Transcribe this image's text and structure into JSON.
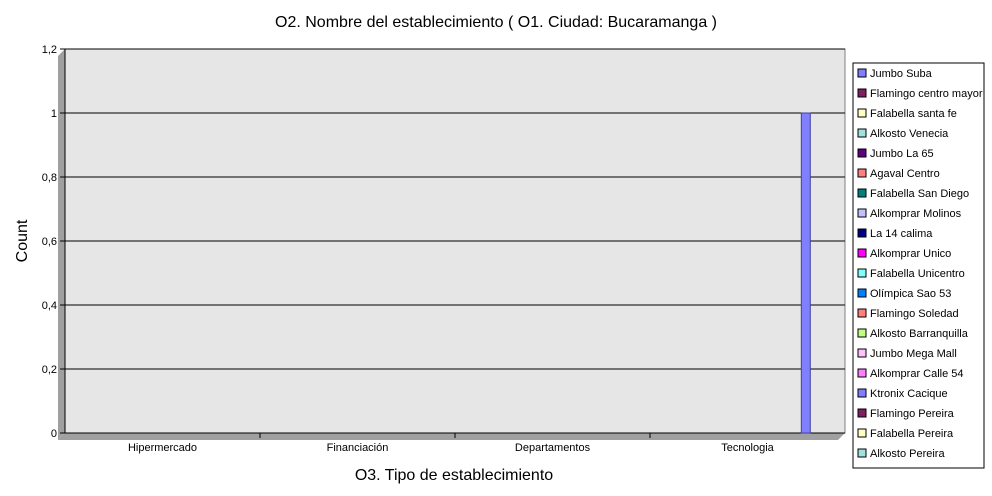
{
  "chart_data": {
    "type": "bar",
    "title": "O2. Nombre del establecimiento ( O1. Ciudad: Bucaramanga )",
    "xlabel": "O3. Tipo de establecimiento",
    "ylabel": "Count",
    "ylim": [
      0,
      1.2
    ],
    "yticks": [
      "0",
      "0,2",
      "0,4",
      "0,6",
      "0,8",
      "1",
      "1,2"
    ],
    "ytick_values": [
      0,
      0.2,
      0.4,
      0.6,
      0.8,
      1.0,
      1.2
    ],
    "grid": true,
    "legend_position": "right",
    "plot_background": "#e6e6e6",
    "categories": [
      "Hipermercado",
      "Financiación",
      "Departamentos",
      "Tecnologia"
    ],
    "series": [
      {
        "name": "Jumbo Suba",
        "color": "#8080ff",
        "values": [
          0,
          0,
          0,
          0
        ]
      },
      {
        "name": "Flamingo centro mayor",
        "color": "#802060",
        "values": [
          0,
          0,
          0,
          0
        ]
      },
      {
        "name": "Falabella santa fe",
        "color": "#ffffc0",
        "values": [
          0,
          0,
          0,
          0
        ]
      },
      {
        "name": "Alkosto Venecia",
        "color": "#a0e0e0",
        "values": [
          0,
          0,
          0,
          0
        ]
      },
      {
        "name": "Jumbo La 65",
        "color": "#600080",
        "values": [
          0,
          0,
          0,
          0
        ]
      },
      {
        "name": "Agaval Centro",
        "color": "#ff8080",
        "values": [
          0,
          0,
          0,
          0
        ]
      },
      {
        "name": "Falabella San Diego",
        "color": "#008080",
        "values": [
          0,
          0,
          0,
          0
        ]
      },
      {
        "name": "Alkomprar Molinos",
        "color": "#c0c0ff",
        "values": [
          0,
          0,
          0,
          0
        ]
      },
      {
        "name": "La 14 calima",
        "color": "#000080",
        "values": [
          0,
          0,
          0,
          0
        ]
      },
      {
        "name": "Alkomprar Unico",
        "color": "#ff00ff",
        "values": [
          0,
          0,
          0,
          0
        ]
      },
      {
        "name": "Falabella Unicentro",
        "color": "#80ffff",
        "values": [
          0,
          0,
          0,
          0
        ]
      },
      {
        "name": "Olímpica Sao 53",
        "color": "#0080ff",
        "values": [
          0,
          0,
          0,
          0
        ]
      },
      {
        "name": "Flamingo Soledad",
        "color": "#ff8080",
        "values": [
          0,
          0,
          0,
          0
        ]
      },
      {
        "name": "Alkosto Barranquilla",
        "color": "#c0ff80",
        "values": [
          0,
          0,
          0,
          0
        ]
      },
      {
        "name": "Jumbo Mega Mall",
        "color": "#ffc0ff",
        "values": [
          0,
          0,
          0,
          0
        ]
      },
      {
        "name": "Alkomprar Calle 54",
        "color": "#ff80ff",
        "values": [
          0,
          0,
          0,
          0
        ]
      },
      {
        "name": "Ktronix Cacique",
        "color": "#8080ff",
        "values": [
          0,
          0,
          0,
          1
        ]
      },
      {
        "name": "Flamingo Pereira",
        "color": "#802060",
        "values": [
          0,
          0,
          0,
          0
        ]
      },
      {
        "name": "Falabella Pereira",
        "color": "#ffffc0",
        "values": [
          0,
          0,
          0,
          0
        ]
      },
      {
        "name": "Alkosto Pereira",
        "color": "#a0e0e0",
        "values": [
          0,
          0,
          0,
          0
        ]
      }
    ]
  }
}
